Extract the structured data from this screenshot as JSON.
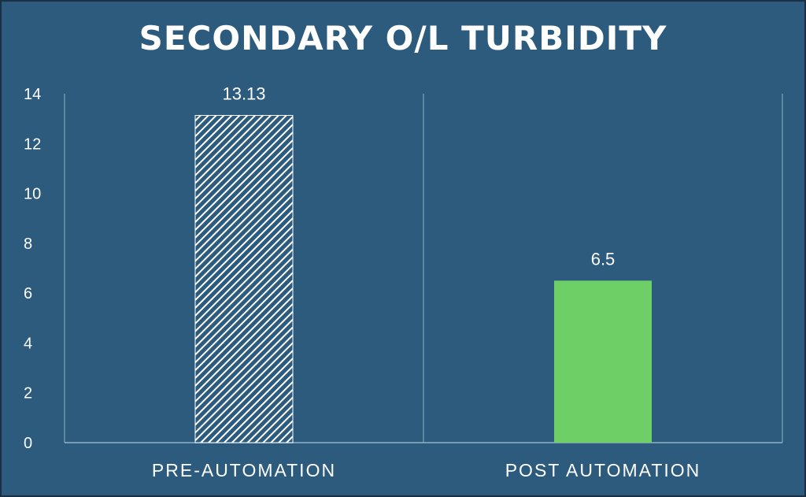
{
  "chart_data": {
    "type": "bar",
    "title": "SECONDARY O/L TURBIDITY",
    "xlabel": "",
    "ylabel": "",
    "categories": [
      "PRE-AUTOMATION",
      "POST AUTOMATION"
    ],
    "values": [
      13.13,
      6.5
    ],
    "data_labels": [
      "13.13",
      "6.5"
    ],
    "ylim": [
      0,
      14
    ],
    "yticks": [
      0,
      2,
      4,
      6,
      8,
      10,
      12,
      14
    ],
    "grid": false,
    "legend": "none",
    "bar_fills": [
      "hatched-white",
      "solid-green"
    ],
    "colors": {
      "background": "#2c5b7d",
      "hatch": "#ffffff",
      "green_bar": "#6fcf67",
      "axis": "#8fb3c9"
    }
  }
}
